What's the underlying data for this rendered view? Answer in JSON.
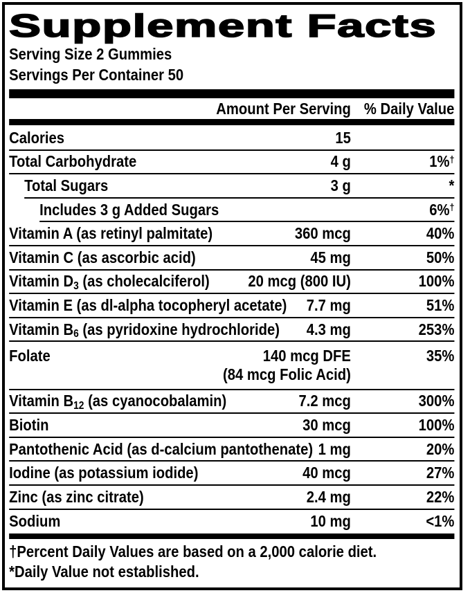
{
  "colors": {
    "text": "#000000",
    "background": "#ffffff",
    "rule": "#000000"
  },
  "label": {
    "title": "Supplement Facts",
    "serving_size": "Serving Size 2 Gummies",
    "servings_per_container": "Servings Per Container 50",
    "column_headers": {
      "amount": "Amount Per Serving",
      "daily_value": "% Daily Value"
    },
    "rows": [
      {
        "label": "Calories",
        "amount": "15",
        "daily_value": "",
        "indent": 0
      },
      {
        "label": "Total Carbohydrate",
        "amount": "4 g",
        "daily_value": "1%^{†}",
        "indent": 0
      },
      {
        "label": "Total Sugars",
        "amount": "3 g",
        "daily_value": "*",
        "indent": 1
      },
      {
        "label": "Includes 3 g Added Sugars",
        "amount": "",
        "daily_value": "6%^{†}",
        "indent": 2
      },
      {
        "label": "Vitamin A (as retinyl palmitate)",
        "amount": "360 mcg",
        "daily_value": "40%",
        "indent": 0
      },
      {
        "label": "Vitamin C (as ascorbic acid)",
        "amount": "45 mg",
        "daily_value": "50%",
        "indent": 0
      },
      {
        "label": "Vitamin D_{3} (as cholecalciferol)",
        "amount": "20 mcg (800 IU)",
        "daily_value": "100%",
        "indent": 0
      },
      {
        "label": "Vitamin E (as dl-alpha tocopheryl acetate)",
        "amount": "7.7 mg",
        "daily_value": "51%",
        "indent": 0
      },
      {
        "label": "Vitamin B_{6} (as pyridoxine hydrochloride)",
        "amount": "4.3 mg",
        "daily_value": "253%",
        "indent": 0
      },
      {
        "label": "Folate",
        "amount": "140 mcg DFE",
        "amount_line2": "(84 mcg Folic Acid)",
        "daily_value": "35%",
        "indent": 0
      },
      {
        "label": "Vitamin B_{12} (as cyanocobalamin)",
        "amount": "7.2 mcg",
        "daily_value": "300%",
        "indent": 0
      },
      {
        "label": "Biotin",
        "amount": "30 mcg",
        "daily_value": "100%",
        "indent": 0
      },
      {
        "label": "Pantothenic Acid (as d-calcium pantothenate)",
        "amount": "1 mg",
        "daily_value": "20%",
        "indent": 0
      },
      {
        "label": "Iodine (as potassium iodide)",
        "amount": "40 mcg",
        "daily_value": "27%",
        "indent": 0
      },
      {
        "label": "Zinc (as zinc citrate)",
        "amount": "2.4 mg",
        "daily_value": "22%",
        "indent": 0
      },
      {
        "label": "Sodium",
        "amount": "10 mg",
        "daily_value": "<1%",
        "indent": 0
      }
    ],
    "footnotes": [
      "†Percent Daily Values are based on a 2,000 calorie diet.",
      "*Daily Value not established."
    ]
  }
}
